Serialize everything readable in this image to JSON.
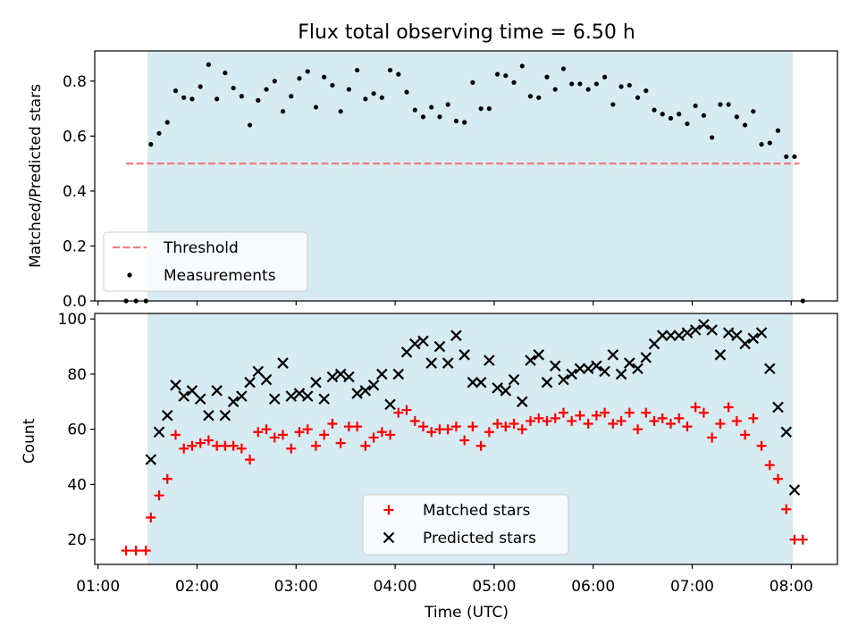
{
  "chart_data": [
    {
      "type": "scatter",
      "title": "Flux total observing time = 6.50 h",
      "xlabel": "",
      "ylabel": "Matched/Predicted stars",
      "xlim": [
        "00:58",
        "08:28"
      ],
      "ylim": [
        0,
        0.91
      ],
      "yticks": [
        0.0,
        0.2,
        0.4,
        0.6,
        0.8
      ],
      "ytick_labels": [
        "0.0",
        "0.2",
        "0.4",
        "0.6",
        "0.8"
      ],
      "grid": false,
      "legend_position": "lower-left",
      "shaded_interval": [
        "01:30",
        "08:01"
      ],
      "series": [
        {
          "name": "Threshold",
          "style": "dashed-line",
          "color": "#f08080",
          "x": [
            "01:17",
            "08:05"
          ],
          "y": [
            0.5,
            0.5
          ]
        },
        {
          "name": "Measurements",
          "style": "dot",
          "color": "#000000",
          "x": [
            "01:17",
            "01:23",
            "01:29",
            "01:32",
            "01:37",
            "01:42",
            "01:47",
            "01:52",
            "01:57",
            "02:02",
            "02:07",
            "02:12",
            "02:17",
            "02:22",
            "02:27",
            "02:32",
            "02:37",
            "02:42",
            "02:47",
            "02:52",
            "02:57",
            "03:02",
            "03:07",
            "03:12",
            "03:17",
            "03:22",
            "03:27",
            "03:32",
            "03:37",
            "03:42",
            "03:47",
            "03:52",
            "03:57",
            "04:02",
            "04:07",
            "04:12",
            "04:17",
            "04:22",
            "04:27",
            "04:32",
            "04:37",
            "04:42",
            "04:47",
            "04:52",
            "04:57",
            "05:02",
            "05:07",
            "05:12",
            "05:17",
            "05:22",
            "05:27",
            "05:32",
            "05:37",
            "05:42",
            "05:47",
            "05:52",
            "05:57",
            "06:02",
            "06:07",
            "06:12",
            "06:17",
            "06:22",
            "06:27",
            "06:32",
            "06:37",
            "06:42",
            "06:47",
            "06:52",
            "06:57",
            "07:02",
            "07:07",
            "07:12",
            "07:17",
            "07:22",
            "07:27",
            "07:32",
            "07:37",
            "07:42",
            "07:47",
            "07:52",
            "07:57",
            "08:02",
            "08:07"
          ],
          "y": [
            0.0,
            0.0,
            0.0,
            0.57,
            0.61,
            0.65,
            0.765,
            0.74,
            0.735,
            0.78,
            0.86,
            0.735,
            0.83,
            0.775,
            0.745,
            0.64,
            0.73,
            0.77,
            0.8,
            0.69,
            0.745,
            0.81,
            0.835,
            0.705,
            0.815,
            0.785,
            0.69,
            0.77,
            0.84,
            0.735,
            0.755,
            0.74,
            0.84,
            0.825,
            0.76,
            0.695,
            0.67,
            0.705,
            0.67,
            0.715,
            0.655,
            0.65,
            0.795,
            0.7,
            0.7,
            0.825,
            0.82,
            0.795,
            0.855,
            0.745,
            0.74,
            0.815,
            0.77,
            0.845,
            0.79,
            0.79,
            0.77,
            0.79,
            0.815,
            0.715,
            0.78,
            0.785,
            0.74,
            0.765,
            0.695,
            0.68,
            0.665,
            0.68,
            0.645,
            0.71,
            0.675,
            0.595,
            0.715,
            0.715,
            0.67,
            0.64,
            0.69,
            0.57,
            0.575,
            0.62,
            0.525,
            0.525,
            0.0
          ]
        }
      ]
    },
    {
      "type": "scatter",
      "title": "",
      "xlabel": "Time (UTC)",
      "ylabel": "Count",
      "xlim": [
        "00:58",
        "08:28"
      ],
      "ylim": [
        11,
        102
      ],
      "yticks": [
        20,
        40,
        60,
        80,
        100
      ],
      "ytick_labels": [
        "20",
        "40",
        "60",
        "80",
        "100"
      ],
      "xticks": [
        "01:00",
        "02:00",
        "03:00",
        "04:00",
        "05:00",
        "06:00",
        "07:00",
        "08:00"
      ],
      "xtick_labels": [
        "01:00",
        "02:00",
        "03:00",
        "04:00",
        "05:00",
        "06:00",
        "07:00",
        "08:00"
      ],
      "grid": false,
      "legend_position": "lower-center",
      "shaded_interval": [
        "01:30",
        "08:01"
      ],
      "series": [
        {
          "name": "Matched stars",
          "style": "plus",
          "color": "#ff0000",
          "x": [
            "01:17",
            "01:23",
            "01:29",
            "01:32",
            "01:37",
            "01:42",
            "01:47",
            "01:52",
            "01:57",
            "02:02",
            "02:07",
            "02:12",
            "02:17",
            "02:22",
            "02:27",
            "02:32",
            "02:37",
            "02:42",
            "02:47",
            "02:52",
            "02:57",
            "03:02",
            "03:07",
            "03:12",
            "03:17",
            "03:22",
            "03:27",
            "03:32",
            "03:37",
            "03:42",
            "03:47",
            "03:52",
            "03:57",
            "04:02",
            "04:07",
            "04:12",
            "04:17",
            "04:22",
            "04:27",
            "04:32",
            "04:37",
            "04:42",
            "04:47",
            "04:52",
            "04:57",
            "05:02",
            "05:07",
            "05:12",
            "05:17",
            "05:22",
            "05:27",
            "05:32",
            "05:37",
            "05:42",
            "05:47",
            "05:52",
            "05:57",
            "06:02",
            "06:07",
            "06:12",
            "06:17",
            "06:22",
            "06:27",
            "06:32",
            "06:37",
            "06:42",
            "06:47",
            "06:52",
            "06:57",
            "07:02",
            "07:07",
            "07:12",
            "07:17",
            "07:22",
            "07:27",
            "07:32",
            "07:37",
            "07:42",
            "07:47",
            "07:52",
            "07:57",
            "08:02",
            "08:07"
          ],
          "y": [
            16,
            16,
            16,
            28,
            36,
            42,
            58,
            53,
            54,
            55,
            56,
            54,
            54,
            54,
            53,
            49,
            59,
            60,
            57,
            58,
            53,
            59,
            60,
            54,
            58,
            62,
            55,
            61,
            61,
            54,
            57,
            59,
            58,
            66,
            67,
            63,
            61,
            59,
            60,
            60,
            61,
            56,
            61,
            54,
            59,
            62,
            61,
            62,
            60,
            63,
            64,
            63,
            64,
            66,
            63,
            65,
            62,
            65,
            66,
            62,
            63,
            66,
            60,
            66,
            63,
            64,
            62,
            64,
            61,
            68,
            66,
            57,
            62,
            68,
            63,
            58,
            64,
            54,
            47,
            42,
            31,
            20,
            20
          ]
        },
        {
          "name": "Predicted stars",
          "style": "x",
          "color": "#000000",
          "x": [
            "01:32",
            "01:37",
            "01:42",
            "01:47",
            "01:52",
            "01:57",
            "02:02",
            "02:07",
            "02:12",
            "02:17",
            "02:22",
            "02:27",
            "02:32",
            "02:37",
            "02:42",
            "02:47",
            "02:52",
            "02:57",
            "03:02",
            "03:07",
            "03:12",
            "03:17",
            "03:22",
            "03:27",
            "03:32",
            "03:37",
            "03:42",
            "03:47",
            "03:52",
            "03:57",
            "04:02",
            "04:07",
            "04:12",
            "04:17",
            "04:22",
            "04:27",
            "04:32",
            "04:37",
            "04:42",
            "04:47",
            "04:52",
            "04:57",
            "05:02",
            "05:07",
            "05:12",
            "05:17",
            "05:22",
            "05:27",
            "05:32",
            "05:37",
            "05:42",
            "05:47",
            "05:52",
            "05:57",
            "06:02",
            "06:07",
            "06:12",
            "06:17",
            "06:22",
            "06:27",
            "06:32",
            "06:37",
            "06:42",
            "06:47",
            "06:52",
            "06:57",
            "07:02",
            "07:07",
            "07:12",
            "07:17",
            "07:22",
            "07:27",
            "07:32",
            "07:37",
            "07:42",
            "07:47",
            "07:52",
            "07:57",
            "08:02"
          ],
          "y": [
            49,
            59,
            65,
            76,
            72,
            74,
            71,
            65,
            74,
            65,
            70,
            72,
            77,
            81,
            78,
            71,
            84,
            72,
            73,
            72,
            77,
            71,
            79,
            80,
            79,
            73,
            74,
            76,
            80,
            69,
            80,
            88,
            91,
            92,
            84,
            90,
            84,
            94,
            87,
            77,
            77,
            85,
            75,
            74,
            78,
            70,
            85,
            87,
            77,
            83,
            78,
            80,
            82,
            82,
            83,
            81,
            87,
            80,
            84,
            82,
            86,
            91,
            94,
            94,
            94,
            95,
            96,
            98,
            96,
            87,
            95,
            94,
            91,
            93,
            95,
            82,
            68,
            59,
            38
          ]
        }
      ]
    }
  ]
}
